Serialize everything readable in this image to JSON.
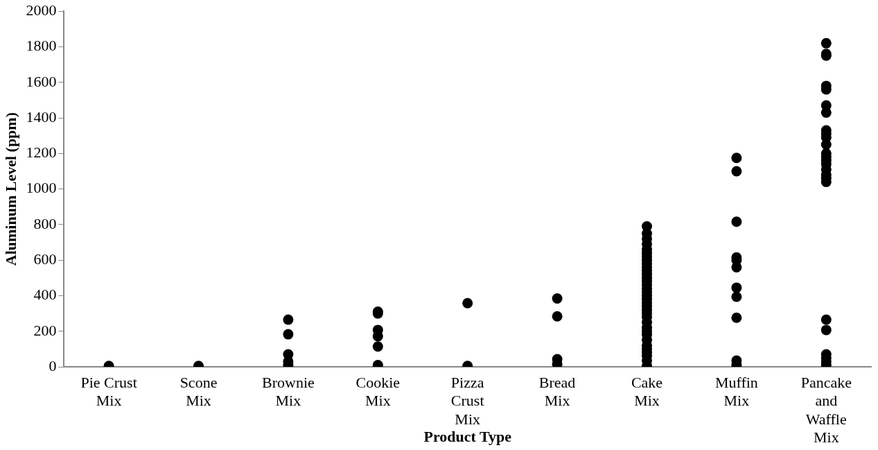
{
  "chart_data": {
    "type": "scatter",
    "xlabel": "Product Type",
    "ylabel": "Aluminum Level (ppm)",
    "categories": [
      "Pie Crust Mix",
      "Scone Mix",
      "Brownie Mix",
      "Cookie Mix",
      "Pizza Crust Mix",
      "Bread Mix",
      "Cake Mix",
      "Muffin Mix",
      "Pancake and Waffle Mix"
    ],
    "ylim": [
      0,
      2000
    ],
    "yticks": [
      0,
      200,
      400,
      600,
      800,
      1000,
      1200,
      1400,
      1600,
      1800,
      2000
    ],
    "grid": false,
    "legend": false,
    "marker": "circle",
    "series": [
      {
        "color": "#000000",
        "x": [
          "Pie Crust Mix",
          "Scone Mix",
          "Brownie Mix",
          "Brownie Mix",
          "Brownie Mix",
          "Brownie Mix",
          "Brownie Mix",
          "Cookie Mix",
          "Cookie Mix",
          "Cookie Mix",
          "Cookie Mix",
          "Cookie Mix",
          "Cookie Mix",
          "Pizza Crust Mix",
          "Pizza Crust Mix",
          "Bread Mix",
          "Bread Mix",
          "Bread Mix",
          "Bread Mix",
          "Cake Mix",
          "Cake Mix",
          "Cake Mix",
          "Cake Mix",
          "Cake Mix",
          "Cake Mix",
          "Cake Mix",
          "Cake Mix",
          "Cake Mix",
          "Cake Mix",
          "Cake Mix",
          "Cake Mix",
          "Cake Mix",
          "Cake Mix",
          "Cake Mix",
          "Cake Mix",
          "Cake Mix",
          "Cake Mix",
          "Cake Mix",
          "Cake Mix",
          "Cake Mix",
          "Cake Mix",
          "Cake Mix",
          "Cake Mix",
          "Cake Mix",
          "Cake Mix",
          "Cake Mix",
          "Cake Mix",
          "Cake Mix",
          "Cake Mix",
          "Cake Mix",
          "Cake Mix",
          "Cake Mix",
          "Cake Mix",
          "Cake Mix",
          "Muffin Mix",
          "Muffin Mix",
          "Muffin Mix",
          "Muffin Mix",
          "Muffin Mix",
          "Muffin Mix",
          "Muffin Mix",
          "Muffin Mix",
          "Muffin Mix",
          "Muffin Mix",
          "Muffin Mix",
          "Pancake and Waffle Mix",
          "Pancake and Waffle Mix",
          "Pancake and Waffle Mix",
          "Pancake and Waffle Mix",
          "Pancake and Waffle Mix",
          "Pancake and Waffle Mix",
          "Pancake and Waffle Mix",
          "Pancake and Waffle Mix",
          "Pancake and Waffle Mix",
          "Pancake and Waffle Mix",
          "Pancake and Waffle Mix",
          "Pancake and Waffle Mix",
          "Pancake and Waffle Mix",
          "Pancake and Waffle Mix",
          "Pancake and Waffle Mix",
          "Pancake and Waffle Mix",
          "Pancake and Waffle Mix",
          "Pancake and Waffle Mix",
          "Pancake and Waffle Mix",
          "Pancake and Waffle Mix",
          "Pancake and Waffle Mix",
          "Pancake and Waffle Mix",
          "Pancake and Waffle Mix",
          "Pancake and Waffle Mix",
          "Pancake and Waffle Mix"
        ],
        "values": [
          5,
          5,
          265,
          183,
          70,
          30,
          10,
          310,
          300,
          207,
          172,
          114,
          10,
          358,
          5,
          384,
          284,
          43,
          15,
          5,
          35,
          60,
          80,
          100,
          120,
          150,
          180,
          200,
          220,
          250,
          280,
          300,
          320,
          340,
          360,
          380,
          400,
          420,
          440,
          460,
          480,
          500,
          520,
          540,
          560,
          580,
          600,
          620,
          640,
          660,
          690,
          720,
          750,
          790,
          1175,
          1100,
          816,
          615,
          600,
          560,
          445,
          394,
          276,
          35,
          10,
          1820,
          1760,
          1750,
          1580,
          1560,
          1470,
          1430,
          1330,
          1310,
          1290,
          1250,
          1200,
          1180,
          1160,
          1140,
          1110,
          1080,
          1060,
          1040,
          265,
          207,
          70,
          50,
          30,
          10
        ]
      }
    ]
  }
}
